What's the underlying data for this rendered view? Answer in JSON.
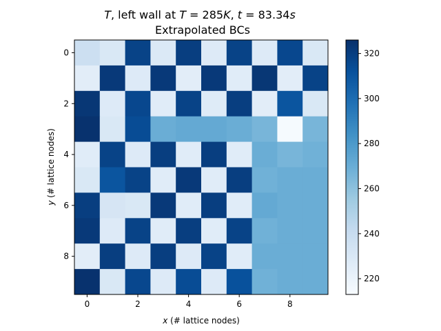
{
  "chart_data": {
    "type": "heatmap",
    "title_line1": "T, left wall at T = 285K, t = 83.34s",
    "title_line2": "Extrapolated BCs",
    "xlabel_var": "x",
    "xlabel_rest": " (# lattice nodes)",
    "ylabel_var": "y",
    "ylabel_rest": " (# lattice nodes)",
    "x_ticks": [
      0,
      2,
      4,
      6,
      8
    ],
    "y_ticks": [
      0,
      2,
      4,
      6,
      8
    ],
    "colorbar_ticks": [
      220,
      240,
      260,
      280,
      300,
      320
    ],
    "colormap": "Blues",
    "vmin": 213,
    "vmax": 326,
    "grid": false,
    "rows": 10,
    "cols": 10,
    "values": [
      [
        238,
        230,
        318,
        229,
        320,
        228,
        318,
        228,
        316,
        230
      ],
      [
        225,
        322,
        228,
        322,
        225,
        322,
        226,
        323,
        225,
        318
      ],
      [
        323,
        228,
        316,
        226,
        318,
        227,
        320,
        225,
        310,
        230
      ],
      [
        325,
        230,
        314,
        270,
        272,
        272,
        270,
        266,
        214,
        266
      ],
      [
        226,
        318,
        228,
        320,
        226,
        320,
        226,
        270,
        266,
        268
      ],
      [
        230,
        310,
        318,
        226,
        322,
        226,
        320,
        268,
        270,
        270
      ],
      [
        320,
        232,
        230,
        322,
        226,
        320,
        226,
        272,
        270,
        270
      ],
      [
        322,
        228,
        318,
        226,
        320,
        226,
        318,
        268,
        270,
        270
      ],
      [
        225,
        320,
        228,
        320,
        228,
        318,
        226,
        270,
        270,
        270
      ],
      [
        325,
        230,
        316,
        228,
        314,
        228,
        312,
        268,
        270,
        270
      ]
    ]
  }
}
